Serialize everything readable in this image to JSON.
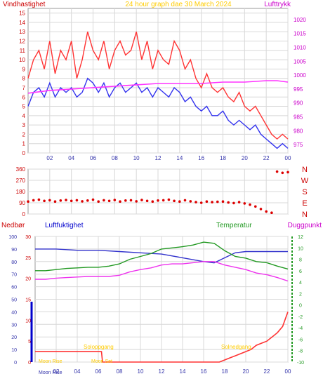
{
  "header": {
    "left_label": "Vindhastighet",
    "center_label": "24 hour graph  dae  30 March 2024",
    "right_label": "Lufttrykk"
  },
  "lower_header": {
    "precip_label": "Nedbør",
    "humidity_label": "Luftfuktighet",
    "temp_label": "Temperatur",
    "dew_label": "Duggpunkt"
  },
  "annotations": {
    "sunrise": "Soloppgang",
    "sunset": "Solnedgang",
    "moonrise": "Moon Rise",
    "moonset": "Moon Set",
    "moon_bottom": "Moon Rise"
  },
  "colors": {
    "wind_gust": "#ff3333",
    "wind_avg": "#3333ee",
    "pressure": "#ff33ff",
    "direction": "#dd0000",
    "humidity": "#3333cc",
    "temperature": "#229922",
    "dewpoint": "#ee33ee",
    "precip": "#ff3333",
    "precip_axis": "#0000cc",
    "header_title": "#ffcc00",
    "sun_label": "#ffcc00",
    "grid": "#d8d8d8"
  },
  "chart_data": [
    {
      "type": "line",
      "name": "wind-pressure",
      "x_ticks": [
        "02",
        "04",
        "06",
        "08",
        "10",
        "12",
        "14",
        "16",
        "18",
        "20",
        "22",
        "00"
      ],
      "xlim": [
        0,
        24
      ],
      "ylim_left": [
        0,
        15.5
      ],
      "yticks_left": [
        "0",
        "1",
        "2",
        "3",
        "4",
        "5",
        "6",
        "7",
        "8",
        "9",
        "10",
        "11",
        "12",
        "13",
        "14",
        "15"
      ],
      "ylim_right": [
        972,
        1024
      ],
      "yticks_right": [
        "975",
        "980",
        "985",
        "990",
        "995",
        "1000",
        "1005",
        "1010",
        "1015",
        "1020"
      ],
      "grid": true,
      "series": [
        {
          "key": "gust",
          "x": [
            0,
            0.5,
            1,
            1.5,
            2,
            2.5,
            3,
            3.5,
            4,
            4.5,
            5,
            5.5,
            6,
            6.5,
            7,
            7.5,
            8,
            8.5,
            9,
            9.5,
            10,
            10.5,
            11,
            11.5,
            12,
            12.5,
            13,
            13.5,
            14,
            14.5,
            15,
            15.5,
            16,
            16.5,
            17,
            17.5,
            18,
            18.5,
            19,
            19.5,
            20,
            20.5,
            21,
            21.5,
            22,
            22.5,
            23,
            23.5,
            24
          ],
          "values": [
            8,
            10,
            11,
            9,
            12,
            8.5,
            11,
            10,
            12,
            8,
            10,
            13,
            11,
            10,
            12,
            9,
            11,
            12,
            10.5,
            11,
            13,
            10,
            12,
            9,
            11,
            10,
            9.5,
            12,
            11,
            9,
            10,
            8,
            7,
            8.5,
            7,
            6.5,
            7,
            6,
            5.5,
            6.5,
            5,
            4.5,
            5,
            4,
            3,
            2,
            1.5,
            2,
            1.5
          ]
        },
        {
          "key": "avg",
          "x": [
            0,
            0.5,
            1,
            1.5,
            2,
            2.5,
            3,
            3.5,
            4,
            4.5,
            5,
            5.5,
            6,
            6.5,
            7,
            7.5,
            8,
            8.5,
            9,
            9.5,
            10,
            10.5,
            11,
            11.5,
            12,
            12.5,
            13,
            13.5,
            14,
            14.5,
            15,
            15.5,
            16,
            16.5,
            17,
            17.5,
            18,
            18.5,
            19,
            19.5,
            20,
            20.5,
            21,
            21.5,
            22,
            22.5,
            23,
            23.5,
            24
          ],
          "values": [
            5,
            6.5,
            7,
            6,
            7.5,
            6,
            7,
            6.5,
            7,
            6,
            6.5,
            8,
            7.5,
            6.5,
            7.5,
            6,
            7,
            7.5,
            6.5,
            7,
            7.5,
            6.5,
            7,
            6,
            7,
            6.5,
            6,
            7,
            6.5,
            5.5,
            6,
            5,
            4.5,
            5,
            4,
            4,
            4.5,
            3.5,
            3,
            3.5,
            3,
            2.5,
            3,
            2,
            1.5,
            1,
            0.5,
            1,
            0.5
          ]
        },
        {
          "key": "pressure",
          "x": [
            0,
            2,
            4,
            6,
            8,
            10,
            12,
            14,
            16,
            18,
            20,
            22,
            23,
            24
          ],
          "values": [
            993.5,
            994.5,
            995,
            995.5,
            996,
            996.5,
            997,
            997,
            997,
            997.5,
            997.5,
            998,
            998,
            997.5
          ]
        }
      ]
    },
    {
      "type": "scatter",
      "name": "wind-direction",
      "xlim": [
        0,
        24
      ],
      "ylim": [
        0,
        360
      ],
      "yticks": [
        "0",
        "90",
        "180",
        "270",
        "360"
      ],
      "compass_labels": [
        "N",
        "W",
        "S",
        "E",
        "N"
      ],
      "x": [
        0,
        0.5,
        1,
        1.5,
        2,
        2.5,
        3,
        3.5,
        4,
        4.5,
        5,
        5.5,
        6,
        6.5,
        7,
        7.5,
        8,
        8.5,
        9,
        9.5,
        10,
        10.5,
        11,
        11.5,
        12,
        12.5,
        13,
        13.5,
        14,
        14.5,
        15,
        15.5,
        16,
        16.5,
        17,
        17.5,
        18,
        18.5,
        19,
        19.5,
        20,
        20.5,
        21,
        21.5,
        22,
        22.5,
        23,
        23.5,
        24
      ],
      "values": [
        100,
        110,
        115,
        105,
        110,
        100,
        108,
        112,
        105,
        110,
        102,
        108,
        115,
        100,
        110,
        105,
        112,
        100,
        108,
        110,
        102,
        112,
        105,
        100,
        108,
        110,
        115,
        105,
        100,
        110,
        102,
        95,
        90,
        100,
        95,
        98,
        100,
        92,
        88,
        95,
        85,
        75,
        60,
        40,
        20,
        10,
        340,
        330,
        335
      ]
    },
    {
      "type": "line",
      "name": "humidity-temp-precip",
      "xlim": [
        0,
        24
      ],
      "x_ticks": [
        "02",
        "04",
        "06",
        "08",
        "10",
        "12",
        "14",
        "16",
        "18",
        "20",
        "22",
        "00"
      ],
      "ylim_precip": [
        0,
        30
      ],
      "yticks_precip": [
        "0",
        "5",
        "10",
        "15",
        "20",
        "25",
        "30"
      ],
      "ylim_humidity": [
        0,
        100
      ],
      "yticks_humidity": [
        "0",
        "10",
        "20",
        "30",
        "40",
        "50",
        "60",
        "70",
        "80",
        "90",
        "100"
      ],
      "ylim_temp": [
        -10,
        12
      ],
      "yticks_temp": [
        "-10",
        "-8",
        "-6",
        "-4",
        "-2",
        "0",
        "2",
        "4",
        "6",
        "8",
        "10",
        "12"
      ],
      "grid": true,
      "series": [
        {
          "key": "humidity",
          "x": [
            0,
            2,
            4,
            6,
            8,
            10,
            12,
            14,
            16,
            17,
            18,
            19,
            20,
            22,
            24
          ],
          "values": [
            90,
            90,
            89,
            89,
            88,
            87,
            86,
            83,
            80,
            79,
            83,
            87,
            88,
            88,
            88
          ]
        },
        {
          "key": "temperature",
          "x": [
            0,
            1,
            2,
            3,
            4,
            5,
            6,
            7,
            8,
            9,
            10,
            11,
            12,
            13,
            14,
            15,
            16,
            17,
            18,
            19,
            20,
            21,
            22,
            23,
            24
          ],
          "values": [
            6,
            6,
            6.2,
            6.4,
            6.5,
            6.6,
            6.6,
            6.8,
            7.2,
            8,
            8.5,
            9,
            9.8,
            10,
            10.2,
            10.5,
            11,
            10.8,
            9.5,
            8.5,
            8.2,
            7.6,
            7.4,
            6.8,
            6.3
          ]
        },
        {
          "key": "dewpoint",
          "x": [
            0,
            1,
            2,
            3,
            4,
            5,
            6,
            7,
            8,
            9,
            10,
            11,
            12,
            13,
            14,
            15,
            16,
            17,
            18,
            19,
            20,
            21,
            22,
            23,
            24
          ],
          "values": [
            4.5,
            4.5,
            4.7,
            4.8,
            4.9,
            5,
            5,
            5,
            5.2,
            5.8,
            6.2,
            6.5,
            7,
            7.2,
            7.2,
            7.4,
            7.6,
            7.6,
            7,
            6.6,
            6.2,
            5.6,
            5.3,
            4.8,
            4.2
          ]
        },
        {
          "key": "precip",
          "x": [
            0,
            6.3,
            6.4,
            17.5,
            18,
            18.5,
            19,
            19.5,
            20,
            20.5,
            21,
            21.5,
            22,
            22.5,
            23,
            23.5,
            24
          ],
          "values": [
            2.5,
            2.5,
            0,
            0,
            0.5,
            1,
            1.5,
            2,
            2.5,
            3,
            4,
            4.5,
            5,
            6,
            7,
            8.5,
            12
          ]
        }
      ]
    }
  ]
}
